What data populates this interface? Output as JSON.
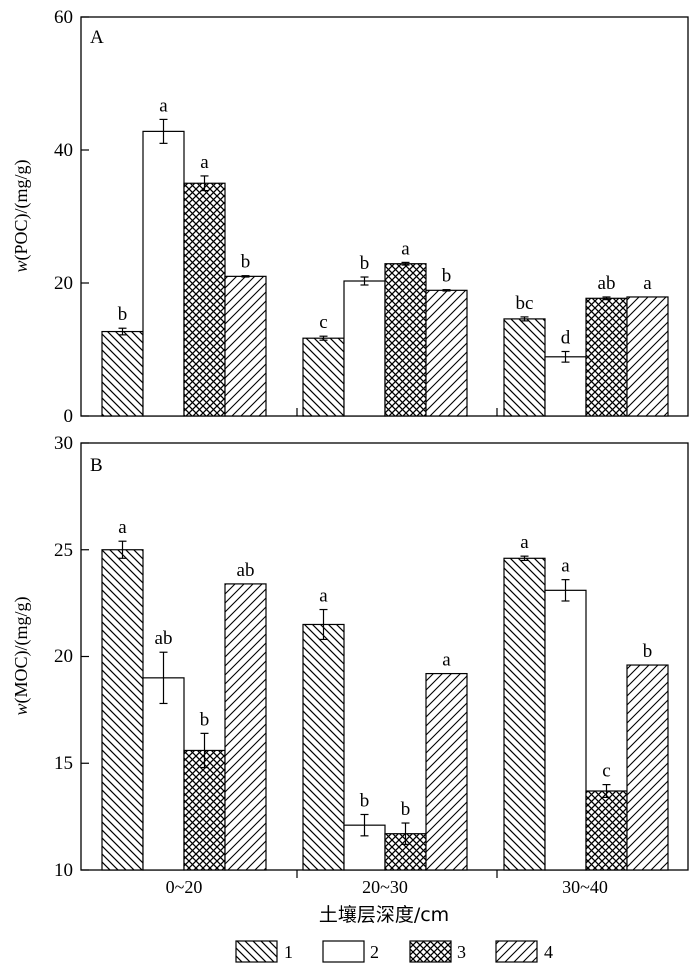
{
  "chart_data": [
    {
      "type": "bar",
      "panel_label": "A",
      "ylabel_italic": "w",
      "ylabel_rest": "(POC)/(mg/g)",
      "ylim": [
        0,
        60
      ],
      "yticks": [
        "0",
        "20",
        "40",
        "60"
      ],
      "categories": [
        "0~20",
        "20~30",
        "30~40"
      ],
      "series": [
        {
          "name": "1",
          "values": [
            12.7,
            11.7,
            14.6
          ],
          "errors": [
            0.5,
            0.3,
            0.3
          ],
          "letters": [
            "b",
            "c",
            "bc"
          ]
        },
        {
          "name": "2",
          "values": [
            42.8,
            20.3,
            8.9
          ],
          "errors": [
            1.8,
            0.6,
            0.8
          ],
          "letters": [
            "a",
            "b",
            "d"
          ]
        },
        {
          "name": "3",
          "values": [
            35.0,
            22.9,
            17.7
          ],
          "errors": [
            1.1,
            0.2,
            0.2
          ],
          "letters": [
            "a",
            "a",
            "ab"
          ]
        },
        {
          "name": "4",
          "values": [
            21.0,
            18.9,
            17.9
          ],
          "errors": [
            0.1,
            0.1,
            0.0
          ],
          "letters": [
            "b",
            "b",
            "a"
          ]
        }
      ]
    },
    {
      "type": "bar",
      "panel_label": "B",
      "ylabel_italic": "w",
      "ylabel_rest": "(MOC)/(mg/g)",
      "ylim": [
        10,
        30
      ],
      "yticks": [
        "10",
        "15",
        "20",
        "25",
        "30"
      ],
      "categories": [
        "0~20",
        "20~30",
        "30~40"
      ],
      "series": [
        {
          "name": "1",
          "values": [
            25.0,
            21.5,
            24.6
          ],
          "errors": [
            0.4,
            0.7,
            0.1
          ],
          "letters": [
            "a",
            "a",
            "a"
          ]
        },
        {
          "name": "2",
          "values": [
            19.0,
            12.1,
            23.1
          ],
          "errors": [
            1.2,
            0.5,
            0.5
          ],
          "letters": [
            "ab",
            "b",
            "a"
          ]
        },
        {
          "name": "3",
          "values": [
            15.6,
            11.7,
            13.7
          ],
          "errors": [
            0.8,
            0.5,
            0.3
          ],
          "letters": [
            "b",
            "b",
            "c"
          ]
        },
        {
          "name": "4",
          "values": [
            23.4,
            19.2,
            19.6
          ],
          "errors": [
            0.0,
            0.0,
            0.0
          ],
          "letters": [
            "ab",
            "a",
            "b"
          ]
        }
      ]
    }
  ],
  "xlabel": "土壤层深度/cm",
  "legend": {
    "items": [
      {
        "label": "1",
        "pattern": "backslash"
      },
      {
        "label": "2",
        "pattern": "none"
      },
      {
        "label": "3",
        "pattern": "crosshatch"
      },
      {
        "label": "4",
        "pattern": "slash"
      }
    ]
  }
}
